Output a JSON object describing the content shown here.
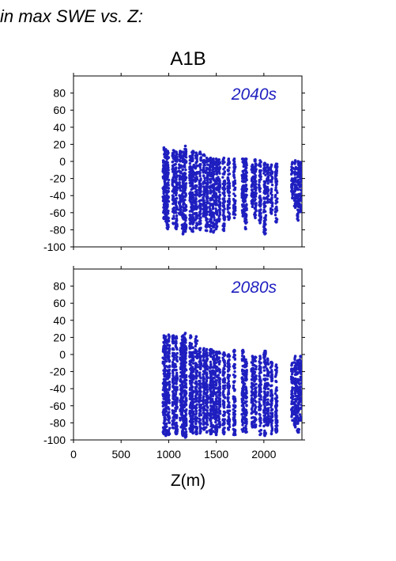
{
  "header": {
    "text": "in max SWE vs. Z:"
  },
  "scenario_title": "A1B",
  "xlabel": "Z(m)",
  "colors": {
    "points": "#1f1fc0",
    "panel_label": "#1f1fc0",
    "axis": "#000000"
  },
  "chart_data": [
    {
      "type": "scatter",
      "panel_label": "2040s",
      "xlim": [
        0,
        2400
      ],
      "ylim": [
        -100,
        100
      ],
      "x_ticks": [
        0,
        500,
        1000,
        1500,
        2000
      ],
      "y_ticks": [
        -100,
        -80,
        -60,
        -40,
        -20,
        0,
        20,
        40,
        60,
        80
      ],
      "x_tick_labels_shown": false,
      "grid": false,
      "columns": [
        {
          "x": 950,
          "ymin": -67,
          "ymax": 16
        },
        {
          "x": 970,
          "ymin": -70,
          "ymax": 14
        },
        {
          "x": 990,
          "ymin": -79,
          "ymax": 12
        },
        {
          "x": 1050,
          "ymin": -73,
          "ymax": 13
        },
        {
          "x": 1080,
          "ymin": -79,
          "ymax": 11
        },
        {
          "x": 1120,
          "ymin": -62,
          "ymax": 12
        },
        {
          "x": 1150,
          "ymin": -85,
          "ymax": 11
        },
        {
          "x": 1175,
          "ymin": -82,
          "ymax": 18
        },
        {
          "x": 1230,
          "ymin": -79,
          "ymax": 6
        },
        {
          "x": 1255,
          "ymin": -82,
          "ymax": 12
        },
        {
          "x": 1290,
          "ymin": -78,
          "ymax": 10
        },
        {
          "x": 1330,
          "ymin": -80,
          "ymax": 11
        },
        {
          "x": 1370,
          "ymin": -64,
          "ymax": 8
        },
        {
          "x": 1400,
          "ymin": -81,
          "ymax": 4
        },
        {
          "x": 1440,
          "ymin": -82,
          "ymax": 4
        },
        {
          "x": 1470,
          "ymin": -83,
          "ymax": 3
        },
        {
          "x": 1500,
          "ymin": -79,
          "ymax": 3
        },
        {
          "x": 1530,
          "ymin": -70,
          "ymax": 2
        },
        {
          "x": 1580,
          "ymin": -81,
          "ymax": 4
        },
        {
          "x": 1630,
          "ymin": -68,
          "ymax": 3
        },
        {
          "x": 1690,
          "ymin": -66,
          "ymax": 3
        },
        {
          "x": 1780,
          "ymin": -64,
          "ymax": 3
        },
        {
          "x": 1810,
          "ymin": -79,
          "ymax": 3
        },
        {
          "x": 1880,
          "ymin": -53,
          "ymax": -4
        },
        {
          "x": 1910,
          "ymin": -66,
          "ymax": 2
        },
        {
          "x": 1960,
          "ymin": -72,
          "ymax": 1
        },
        {
          "x": 2010,
          "ymin": -85,
          "ymax": -2
        },
        {
          "x": 2040,
          "ymin": -48,
          "ymax": -4
        },
        {
          "x": 2080,
          "ymin": -61,
          "ymax": -4
        },
        {
          "x": 2130,
          "ymin": -71,
          "ymax": -3
        },
        {
          "x": 2300,
          "ymin": -43,
          "ymax": -1
        },
        {
          "x": 2330,
          "ymin": -54,
          "ymax": 1
        },
        {
          "x": 2360,
          "ymin": -69,
          "ymax": 0
        },
        {
          "x": 2385,
          "ymin": -59,
          "ymax": -1
        }
      ]
    },
    {
      "type": "scatter",
      "panel_label": "2080s",
      "xlim": [
        0,
        2400
      ],
      "ylim": [
        -100,
        100
      ],
      "x_ticks": [
        0,
        500,
        1000,
        1500,
        2000
      ],
      "y_ticks": [
        -100,
        -80,
        -60,
        -40,
        -20,
        0,
        20,
        40,
        60,
        80
      ],
      "x_tick_labels": [
        "0",
        "500",
        "1000",
        "1500",
        "2000"
      ],
      "grid": false,
      "columns": [
        {
          "x": 950,
          "ymin": -93,
          "ymax": 22
        },
        {
          "x": 970,
          "ymin": -95,
          "ymax": 21
        },
        {
          "x": 1000,
          "ymin": -94,
          "ymax": 23
        },
        {
          "x": 1050,
          "ymin": -86,
          "ymax": 22
        },
        {
          "x": 1080,
          "ymin": -93,
          "ymax": 21
        },
        {
          "x": 1130,
          "ymin": -85,
          "ymax": 13
        },
        {
          "x": 1150,
          "ymin": -95,
          "ymax": 22
        },
        {
          "x": 1175,
          "ymin": -97,
          "ymax": 25
        },
        {
          "x": 1230,
          "ymin": -90,
          "ymax": 22
        },
        {
          "x": 1255,
          "ymin": -92,
          "ymax": 8
        },
        {
          "x": 1290,
          "ymin": -93,
          "ymax": 21
        },
        {
          "x": 1330,
          "ymin": -92,
          "ymax": 7
        },
        {
          "x": 1370,
          "ymin": -88,
          "ymax": 7
        },
        {
          "x": 1400,
          "ymin": -91,
          "ymax": 6
        },
        {
          "x": 1440,
          "ymin": -93,
          "ymax": 6
        },
        {
          "x": 1470,
          "ymin": -90,
          "ymax": 4
        },
        {
          "x": 1500,
          "ymin": -94,
          "ymax": 3
        },
        {
          "x": 1530,
          "ymin": -85,
          "ymax": 3
        },
        {
          "x": 1580,
          "ymin": -93,
          "ymax": 2
        },
        {
          "x": 1630,
          "ymin": -88,
          "ymax": 0
        },
        {
          "x": 1690,
          "ymin": -94,
          "ymax": 5
        },
        {
          "x": 1780,
          "ymin": -90,
          "ymax": 5
        },
        {
          "x": 1810,
          "ymin": -91,
          "ymax": -6
        },
        {
          "x": 1880,
          "ymin": -85,
          "ymax": -2
        },
        {
          "x": 1910,
          "ymin": -85,
          "ymax": -3
        },
        {
          "x": 1960,
          "ymin": -94,
          "ymax": -2
        },
        {
          "x": 2010,
          "ymin": -95,
          "ymax": 4
        },
        {
          "x": 2040,
          "ymin": -83,
          "ymax": -5
        },
        {
          "x": 2080,
          "ymin": -93,
          "ymax": -9
        },
        {
          "x": 2130,
          "ymin": -91,
          "ymax": -12
        },
        {
          "x": 2300,
          "ymin": -77,
          "ymax": -10
        },
        {
          "x": 2330,
          "ymin": -85,
          "ymax": -2
        },
        {
          "x": 2360,
          "ymin": -91,
          "ymax": -7
        },
        {
          "x": 2385,
          "ymin": -77,
          "ymax": -2
        }
      ]
    }
  ]
}
